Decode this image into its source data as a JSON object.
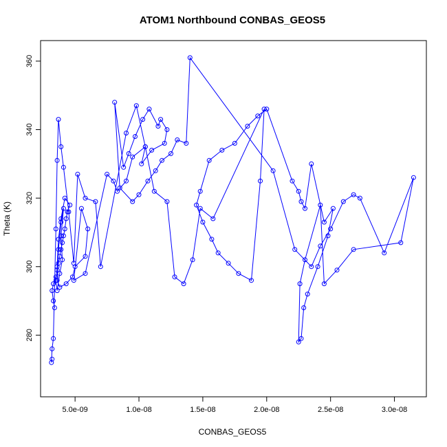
{
  "chart_data": {
    "type": "line",
    "title": "ATOM1 Northbound CONBAS_GEOS5",
    "xlabel": "CONBAS_GEOS5",
    "ylabel": "Theta (K)",
    "xlim": [
      2.3e-09,
      3.25e-08
    ],
    "ylim": [
      262,
      366
    ],
    "x_ticks": [
      5e-09,
      1e-08,
      1.5e-08,
      2e-08,
      2.5e-08,
      3e-08
    ],
    "x_tick_labels": [
      "5.0e-09",
      "1.0e-08",
      "1.5e-08",
      "2.0e-08",
      "2.5e-08",
      "3.0e-08"
    ],
    "y_ticks": [
      280,
      300,
      320,
      340,
      360
    ],
    "y_tick_labels": [
      "280",
      "300",
      "320",
      "340",
      "360"
    ],
    "grid": false,
    "legend": "none",
    "color": "#0000ff",
    "x": [
      3.4e-09,
      3.3e-09,
      3.2e-09,
      3.3e-09,
      3.5e-09,
      3.6e-09,
      3.7e-09,
      3.8e-09,
      3.9e-09,
      4e-09,
      4.1e-09,
      4.2e-09,
      4.3e-09,
      4.4e-09,
      4.6e-09,
      4.2e-09,
      3.9e-09,
      3.7e-09,
      3.6e-09,
      3.5e-09,
      3.6e-09,
      3.8e-09,
      4e-09,
      3.9e-09,
      4.1e-09,
      3.9e-09,
      3.7e-09,
      3.6e-09,
      3.8e-09,
      4.3e-09,
      4.8e-09,
      5e-09,
      5.8e-09,
      6e-09,
      5.5e-09,
      4.9e-09,
      5.8e-09,
      7.5e-09,
      8e-09,
      8.3e-09,
      9e-09,
      9.5e-09,
      1.05e-08,
      1.02e-08,
      1.1e-08,
      1.2e-08,
      1.22e-08,
      1.17e-08,
      1.15e-08,
      1.08e-08,
      1.03e-08,
      9.7e-09,
      9.2e-09,
      8.8e-09,
      8.1e-09,
      8.5e-09,
      9.5e-09,
      1e-08,
      1.07e-08,
      1.13e-08,
      1.18e-08,
      1.25e-08,
      1.3e-08,
      1.37e-08,
      1.4e-08,
      2.05e-08,
      2.22e-08,
      2.35e-08,
      2.42e-08,
      2.5e-08,
      2.6e-08,
      2.68e-08,
      2.73e-08,
      2.92e-08,
      3.15e-08,
      3.05e-08,
      2.68e-08,
      2.55e-08,
      2.45e-08,
      2.42e-08,
      2.3e-08,
      2.26e-08,
      2.25e-08,
      2.27e-08,
      2.29e-08,
      2.32e-08,
      2.4e-08,
      2.48e-08,
      2.52e-08,
      2.45e-08,
      2.35e-08,
      2.3e-08,
      2.27e-08,
      2.25e-08,
      2.2e-08,
      2e-08,
      1.93e-08,
      1.85e-08,
      1.75e-08,
      1.65e-08,
      1.55e-08,
      1.48e-08,
      1.45e-08,
      1.5e-08,
      1.57e-08,
      1.62e-08,
      1.7e-08,
      1.78e-08,
      1.88e-08,
      1.95e-08,
      1.98e-08,
      1.58e-08,
      1.48e-08,
      1.42e-08,
      1.35e-08,
      1.28e-08,
      1.22e-08,
      1.12e-08,
      1.05e-08,
      9.8e-09,
      9e-09,
      7e-09,
      6.6e-09,
      5.8e-09,
      5.2e-09,
      4.9e-09,
      4.5e-09,
      4.1e-09,
      3.9e-09,
      3.7e-09,
      3.6e-09,
      3.5e-09,
      3.3e-09,
      3.2e-09,
      3.15e-09,
      3.2e-09
    ],
    "y": [
      288,
      290,
      293,
      295,
      297,
      299,
      301,
      303,
      305,
      307,
      309,
      311,
      314,
      316,
      318,
      320,
      314,
      308,
      300,
      296,
      293,
      298,
      302,
      309,
      317,
      313,
      305,
      296,
      294,
      295,
      297,
      300,
      303,
      311,
      317,
      296,
      298,
      327,
      325,
      322,
      325,
      332,
      335,
      330,
      334,
      336,
      340,
      343,
      341,
      346,
      343,
      338,
      333,
      329,
      348,
      323,
      319,
      321,
      325,
      328,
      331,
      333,
      337,
      336,
      361,
      328,
      305,
      300,
      306,
      311,
      319,
      321,
      320,
      304,
      326,
      307,
      305,
      299,
      295,
      318,
      302,
      295,
      278,
      279,
      288,
      292,
      300,
      309,
      317,
      313,
      330,
      317,
      319,
      322,
      325,
      346,
      344,
      341,
      336,
      334,
      331,
      322,
      318,
      313,
      308,
      304,
      301,
      298,
      296,
      325,
      346,
      314,
      317,
      302,
      295,
      297,
      319,
      322,
      335,
      347,
      339,
      300,
      319,
      320,
      327,
      301,
      316,
      329,
      335,
      343,
      331,
      311,
      279,
      276,
      272,
      273
    ]
  }
}
